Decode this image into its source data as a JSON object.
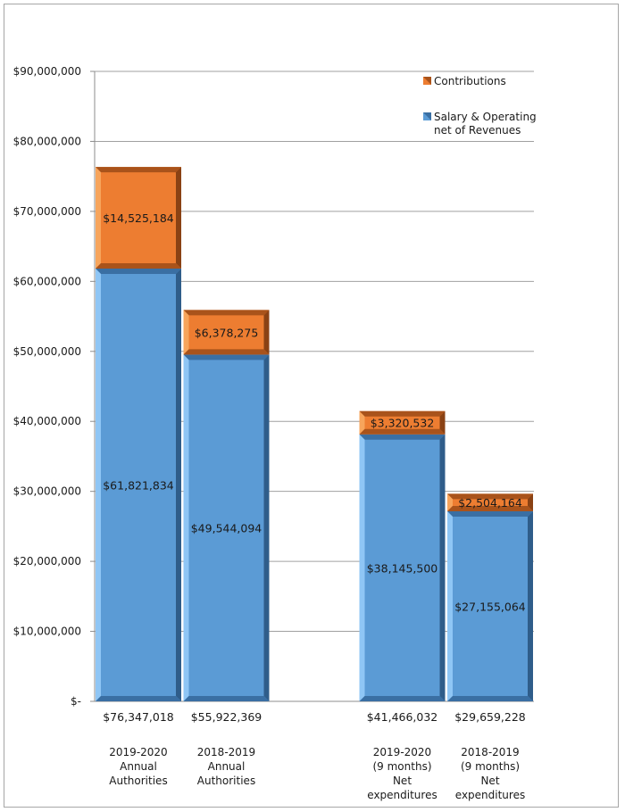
{
  "chart_data": {
    "type": "bar",
    "stacked": true,
    "title": "",
    "xlabel": "",
    "ylabel": "",
    "ylim": [
      0,
      90000000
    ],
    "y_ticks": [
      0,
      10000000,
      20000000,
      30000000,
      40000000,
      50000000,
      60000000,
      70000000,
      80000000,
      90000000
    ],
    "y_tick_labels": [
      "$-",
      "$10,000,000",
      "$20,000,000",
      "$30,000,000",
      "$40,000,000",
      "$50,000,000",
      "$60,000,000",
      "$70,000,000",
      "$80,000,000",
      "$90,000,000"
    ],
    "grid": true,
    "legend_position": "top-right",
    "categories": [
      [
        "2019-2020",
        "Annual",
        "Authorities"
      ],
      [
        "2018-2019",
        "Annual",
        "Authorities"
      ],
      [
        "2019-2020",
        "(9 months)",
        "Net",
        "expenditures"
      ],
      [
        "2018-2019",
        "(9 months)",
        "Net",
        "expenditures"
      ]
    ],
    "category_slots": [
      0,
      1,
      3,
      4
    ],
    "totals": [
      76347018,
      55922369,
      41466032,
      29659228
    ],
    "total_labels": [
      "$76,347,018",
      "$55,922,369",
      "$41,466,032",
      "$29,659,228"
    ],
    "series": [
      {
        "name": "Salary & Operating net of Revenues",
        "legend_lines": [
          "Salary & Operating",
          "net of Revenues"
        ],
        "color": "#5b9bd5",
        "values": [
          61821834,
          49544094,
          38145500,
          27155064
        ],
        "labels": [
          "$61,821,834",
          "$49,544,094",
          "$38,145,500",
          "$27,155,064"
        ]
      },
      {
        "name": "Contributions",
        "legend_lines": [
          "Contributions"
        ],
        "color": "#ed7d31",
        "values": [
          14525184,
          6378275,
          3320532,
          2504164
        ],
        "labels": [
          "$14,525,184",
          "$6,378,275",
          "$3,320,532",
          "$2,504,164"
        ]
      }
    ]
  }
}
